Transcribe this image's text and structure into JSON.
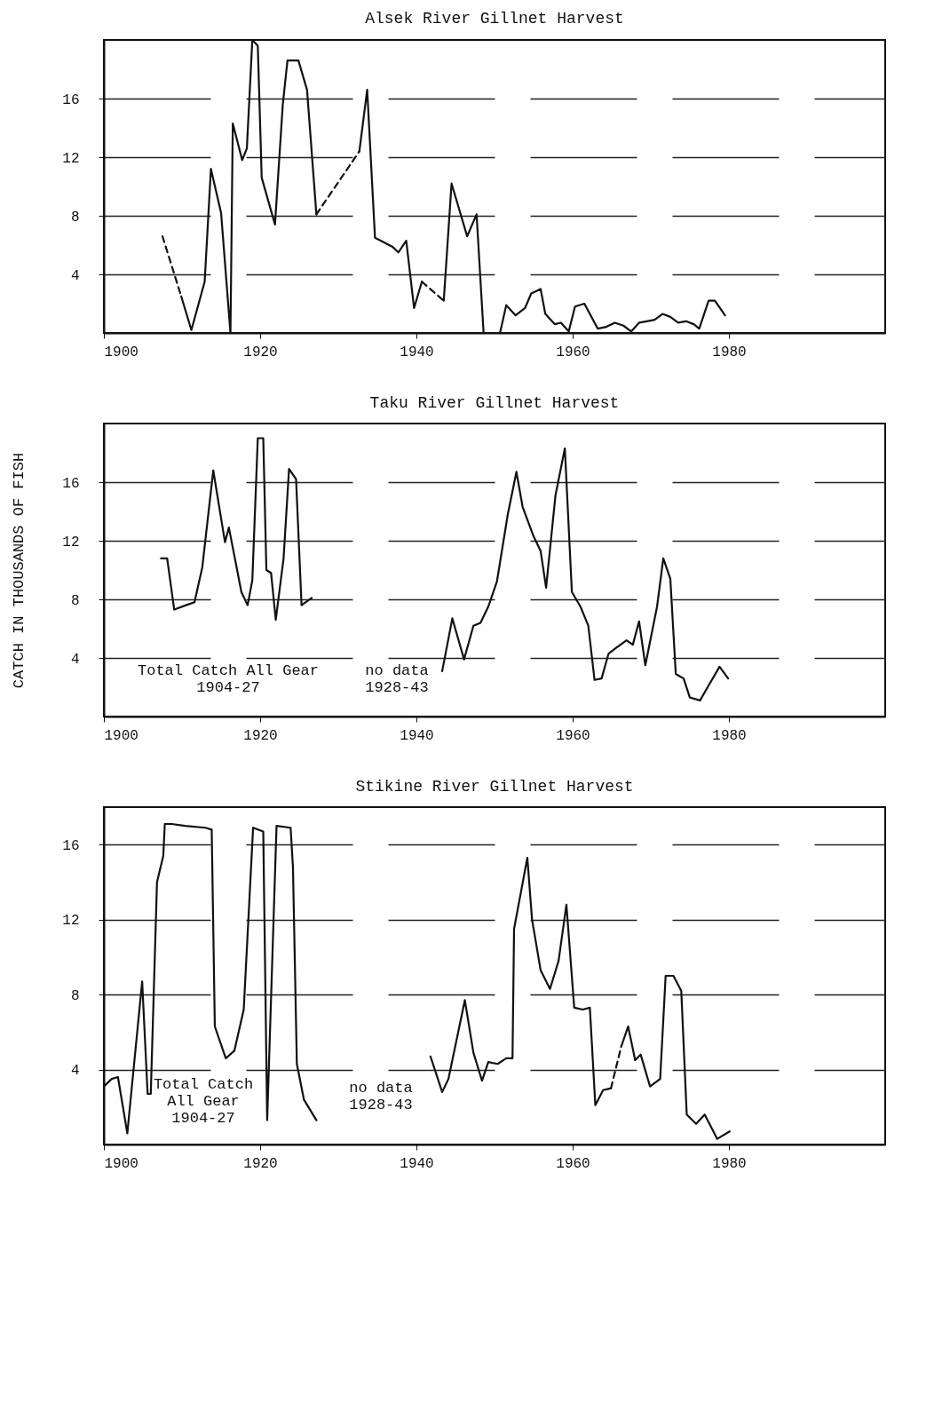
{
  "chart_data": [
    {
      "type": "line",
      "title": "Alsek River Gillnet Harvest",
      "xlim": [
        1900,
        2000
      ],
      "xticks": [
        1900,
        1920,
        1940,
        1960,
        1980
      ],
      "ylim": [
        0,
        20
      ],
      "yticks": [
        4,
        8,
        12,
        16
      ],
      "grid": "y",
      "series": [
        {
          "color": "#111111",
          "line_style": "dashed",
          "x": [
            1907.5,
            1909.9
          ],
          "values": [
            6.6,
            2.5
          ]
        },
        {
          "color": "#111111",
          "line_style": "solid",
          "x": [
            1909.9,
            1911.2,
            1912.9,
            1913.7,
            1915,
            1916.2,
            1916.5,
            1917.7,
            1918.3,
            1919,
            1919.7,
            1920.2,
            1921.9,
            1922.9,
            1923.5,
            1924.9,
            1926,
            1927.2
          ],
          "values": [
            2.5,
            0.2,
            3.5,
            11.2,
            8.2,
            0,
            14.3,
            11.8,
            12.6,
            20,
            19.6,
            10.6,
            7.4,
            15.6,
            18.6,
            18.6,
            16.6,
            8.1
          ]
        },
        {
          "color": "#111111",
          "line_style": "dashed",
          "x": [
            1927.2,
            1932.7
          ],
          "values": [
            8.1,
            12.4
          ]
        },
        {
          "color": "#111111",
          "line_style": "solid",
          "x": [
            1932.7,
            1933.7,
            1934.7,
            1936.9,
            1937.7,
            1938.7,
            1939.7,
            1940.7
          ],
          "values": [
            12.4,
            16.6,
            6.5,
            5.9,
            5.5,
            6.3,
            1.7,
            3.5
          ]
        },
        {
          "color": "#111111",
          "line_style": "dashed",
          "x": [
            1940.7,
            1943.5
          ],
          "values": [
            3.5,
            2.2
          ]
        },
        {
          "color": "#111111",
          "line_style": "solid",
          "x": [
            1943.5,
            1944.5,
            1946.5,
            1947.7,
            1948.6
          ],
          "values": [
            2.2,
            10.2,
            6.6,
            8.1,
            0
          ]
        },
        {
          "color": "#111111",
          "line_style": "solid",
          "x": [
            1950.7,
            1951.5,
            1952.7,
            1953.9,
            1954.7,
            1955.9,
            1956.5,
            1957.7,
            1958.5,
            1959.5,
            1960.3,
            1961.5,
            1962.2,
            1963.2,
            1964.2,
            1965.4,
            1966.5,
            1967.5,
            1968.5,
            1969.5,
            1970.5,
            1971.5,
            1972.5,
            1973.5,
            1974.5,
            1975.5,
            1976.2,
            1977.4,
            1978.2,
            1979.5
          ],
          "values": [
            0,
            1.9,
            1.2,
            1.7,
            2.7,
            3.0,
            1.3,
            0.6,
            0.7,
            0.1,
            1.8,
            2.0,
            1.3,
            0.3,
            0.4,
            0.7,
            0.5,
            0.1,
            0.7,
            0.8,
            0.9,
            1.3,
            1.1,
            0.7,
            0.8,
            0.6,
            0.3,
            2.2,
            2.2,
            1.2
          ]
        }
      ]
    },
    {
      "type": "line",
      "title": "Taku River Gillnet Harvest",
      "ylabel": "CATCH IN THOUSANDS OF FISH",
      "xlim": [
        1900,
        2000
      ],
      "xticks": [
        1900,
        1920,
        1940,
        1960,
        1980
      ],
      "ylim": [
        0,
        20
      ],
      "yticks": [
        4,
        8,
        12,
        16
      ],
      "grid": "y",
      "series": [
        {
          "color": "#111111",
          "line_style": "solid",
          "x": [
            1907.3,
            1908.1,
            1909,
            1910.5,
            1911.6,
            1912.6,
            1914,
            1915.5,
            1916,
            1917.6,
            1918.4,
            1919,
            1919.7,
            1920.4,
            1920.8,
            1921.4,
            1922,
            1923,
            1923.7,
            1924.6,
            1925.3,
            1926.6
          ],
          "values": [
            10.8,
            10.8,
            7.3,
            7.6,
            7.8,
            10.2,
            16.8,
            11.9,
            12.9,
            8.5,
            7.6,
            9.3,
            19,
            19,
            10,
            9.8,
            6.6,
            10.8,
            16.9,
            16.2,
            7.6,
            8.1
          ]
        },
        {
          "color": "#111111",
          "line_style": "solid",
          "x": [
            1943.3,
            1944.6,
            1946.1,
            1947.3,
            1948.2,
            1949.2,
            1950.3,
            1951.7,
            1952.8,
            1953.6,
            1955,
            1955.9,
            1956.6,
            1957.8,
            1959,
            1959.9,
            1961,
            1962,
            1962.8,
            1963.7,
            1964.6,
            1965.6,
            1966.9,
            1967.7,
            1968.5,
            1969.3,
            1970.8,
            1971.6,
            1972.5,
            1973.2,
            1974.2,
            1975,
            1976.3,
            1977.6,
            1978.8,
            1979.9
          ],
          "values": [
            3.1,
            6.7,
            3.9,
            6.2,
            6.4,
            7.5,
            9.2,
            13.8,
            16.7,
            14.3,
            12.3,
            11.3,
            8.8,
            15.1,
            18.3,
            8.5,
            7.5,
            6.2,
            2.5,
            2.6,
            4.3,
            4.7,
            5.2,
            4.9,
            6.5,
            3.5,
            7.5,
            10.8,
            9.4,
            2.9,
            2.6,
            1.3,
            1.1,
            2.3,
            3.4,
            2.6
          ]
        }
      ],
      "annotations": [
        "Total Catch All Gear\n1904-27",
        "no data\n1928-43"
      ]
    },
    {
      "type": "line",
      "title": "Stikine River Gillnet Harvest",
      "xlim": [
        1900,
        2000
      ],
      "xticks": [
        1900,
        1920,
        1940,
        1960,
        1980
      ],
      "ylim": [
        0,
        18
      ],
      "yticks": [
        4,
        8,
        12,
        16
      ],
      "grid": "y",
      "series": [
        {
          "color": "#111111",
          "line_style": "solid",
          "x": [
            1900,
            1901,
            1901.8,
            1903,
            1904.9,
            1905.6,
            1906,
            1906.8,
            1907.6,
            1907.8,
            1908.7,
            1910.4,
            1913,
            1913.8,
            1914.2,
            1915.6,
            1916.7,
            1917.9,
            1919.1,
            1920.4,
            1920.9,
            1922.1,
            1923.9,
            1924.2,
            1924.7,
            1925.6,
            1927.2
          ],
          "values": [
            3.1,
            3.5,
            3.6,
            0.6,
            8.7,
            2.7,
            2.7,
            14,
            15.4,
            17.1,
            17.1,
            17,
            16.9,
            16.8,
            6.3,
            4.6,
            5.0,
            7.2,
            16.9,
            16.7,
            1.3,
            17,
            16.9,
            14.8,
            4.3,
            2.4,
            1.3
          ]
        },
        {
          "color": "#111111",
          "line_style": "solid",
          "x": [
            1941.8,
            1943.3,
            1944.1,
            1946.2,
            1947.3,
            1948.4,
            1949.2,
            1950.4,
            1951.5,
            1952.3,
            1952.5,
            1954.2,
            1954.8,
            1955.9,
            1957.1,
            1958.2,
            1959.2,
            1960.2,
            1961.3,
            1962.2,
            1962.9,
            1963.9,
            1964.9
          ],
          "values": [
            4.7,
            2.8,
            3.5,
            7.7,
            4.9,
            3.4,
            4.4,
            4.3,
            4.6,
            4.6,
            11.5,
            15.3,
            12,
            9.3,
            8.3,
            9.8,
            12.8,
            7.3,
            7.2,
            7.3,
            2.1,
            2.9,
            3.0
          ]
        },
        {
          "color": "#111111",
          "line_style": "dashed",
          "x": [
            1964.9,
            1966.2
          ],
          "values": [
            3.0,
            5.2
          ]
        },
        {
          "color": "#111111",
          "line_style": "solid",
          "x": [
            1966.2,
            1967.1,
            1968,
            1968.7,
            1969.9,
            1971.2,
            1971.9,
            1972.9,
            1973.9,
            1974.6,
            1975.8,
            1976.9,
            1978.5,
            1980.1
          ],
          "values": [
            5.2,
            6.3,
            4.5,
            4.8,
            3.1,
            3.5,
            9.0,
            9.0,
            8.2,
            1.6,
            1.1,
            1.6,
            0.3,
            0.7
          ]
        }
      ],
      "annotations": [
        "Total Catch\nAll Gear\n1904-27",
        "no data\n1928-43"
      ]
    }
  ]
}
